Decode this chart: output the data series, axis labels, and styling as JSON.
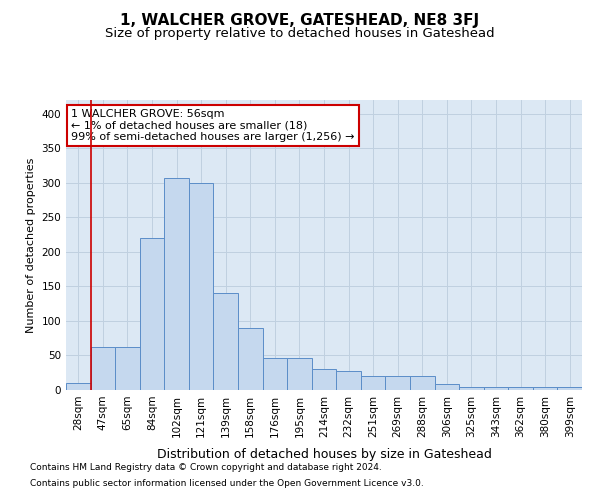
{
  "title": "1, WALCHER GROVE, GATESHEAD, NE8 3FJ",
  "subtitle": "Size of property relative to detached houses in Gateshead",
  "xlabel": "Distribution of detached houses by size in Gateshead",
  "ylabel": "Number of detached properties",
  "footnote1": "Contains HM Land Registry data © Crown copyright and database right 2024.",
  "footnote2": "Contains public sector information licensed under the Open Government Licence v3.0.",
  "categories": [
    "28sqm",
    "47sqm",
    "65sqm",
    "84sqm",
    "102sqm",
    "121sqm",
    "139sqm",
    "158sqm",
    "176sqm",
    "195sqm",
    "214sqm",
    "232sqm",
    "251sqm",
    "269sqm",
    "288sqm",
    "306sqm",
    "325sqm",
    "343sqm",
    "362sqm",
    "380sqm",
    "399sqm"
  ],
  "values": [
    10,
    62,
    63,
    220,
    307,
    300,
    140,
    90,
    47,
    47,
    30,
    28,
    20,
    20,
    20,
    8,
    5,
    5,
    4,
    4,
    4
  ],
  "bar_color": "#c5d8ee",
  "bar_edge_color": "#5b8dc8",
  "annotation_text": "1 WALCHER GROVE: 56sqm\n← 1% of detached houses are smaller (18)\n99% of semi-detached houses are larger (1,256) →",
  "annotation_box_color": "white",
  "annotation_box_edge_color": "#cc0000",
  "vline_color": "#cc0000",
  "ylim": [
    0,
    420
  ],
  "yticks": [
    0,
    50,
    100,
    150,
    200,
    250,
    300,
    350,
    400
  ],
  "grid_color": "#c0d0e0",
  "bg_color": "#dce8f4",
  "title_fontsize": 11,
  "subtitle_fontsize": 9.5,
  "xlabel_fontsize": 9,
  "ylabel_fontsize": 8,
  "tick_fontsize": 7.5,
  "annot_fontsize": 8,
  "footnote_fontsize": 6.5
}
